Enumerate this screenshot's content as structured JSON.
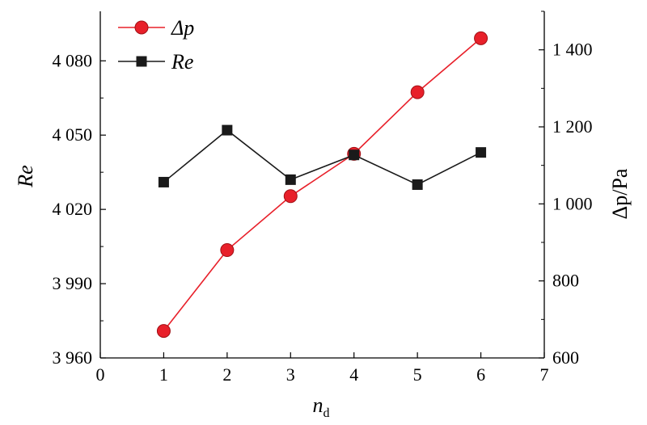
{
  "chart_data": {
    "type": "line",
    "x": [
      1,
      2,
      3,
      4,
      5,
      6
    ],
    "xlim": [
      0,
      7
    ],
    "x_ticks": [
      "0",
      "1",
      "2",
      "3",
      "4",
      "5",
      "6",
      "7"
    ],
    "xlabel_main": "n",
    "xlabel_sub": "d",
    "series": [
      {
        "name": "Δp",
        "axis": "right",
        "color": "#e8202a",
        "marker": "circle",
        "values": [
          670,
          880,
          1020,
          1130,
          1290,
          1430
        ]
      },
      {
        "name": "Re",
        "axis": "left",
        "color": "#1a1a1a",
        "marker": "square",
        "values": [
          4031,
          4052,
          4032,
          4042,
          4030,
          4043
        ]
      }
    ],
    "y_left": {
      "label": "Re",
      "ylim": [
        3960,
        4100
      ],
      "ticks": [
        3960,
        3990,
        4020,
        4050,
        4080
      ],
      "tick_labels": [
        "3 960",
        "3 990",
        "4 020",
        "4 050",
        "4 080"
      ]
    },
    "y_right": {
      "label": "Δp/Pa",
      "ylim": [
        600,
        1500
      ],
      "ticks": [
        600,
        800,
        1000,
        1200,
        1400
      ],
      "tick_labels": [
        "600",
        "800",
        "1 000",
        "1 200",
        "1 400"
      ]
    },
    "legend_position": "top-left",
    "grid": false
  }
}
